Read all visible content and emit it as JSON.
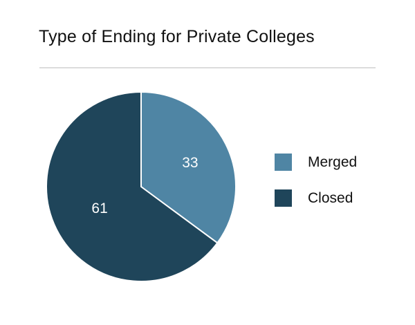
{
  "page": {
    "background": "#ffffff"
  },
  "colors": {
    "divider": "#dcdcdc",
    "title_text": "#111111",
    "legend_text": "#111111"
  },
  "chart_data": {
    "type": "pie",
    "title": "Type of Ending for Private Colleges",
    "categories": [
      "Merged",
      "Closed"
    ],
    "values": [
      33,
      61
    ],
    "total": 94,
    "colors": [
      "#4F85A4",
      "#1F455A"
    ],
    "slice_labels": [
      "33",
      "61"
    ],
    "slice_label_color": "#ffffff",
    "slice_separator_color": "#ffffff",
    "start_angle": "12 o'clock",
    "direction": "clockwise",
    "legend_position": "right",
    "legend": [
      {
        "label": "Merged",
        "color": "#4F85A4"
      },
      {
        "label": "Closed",
        "color": "#1F455A"
      }
    ]
  }
}
